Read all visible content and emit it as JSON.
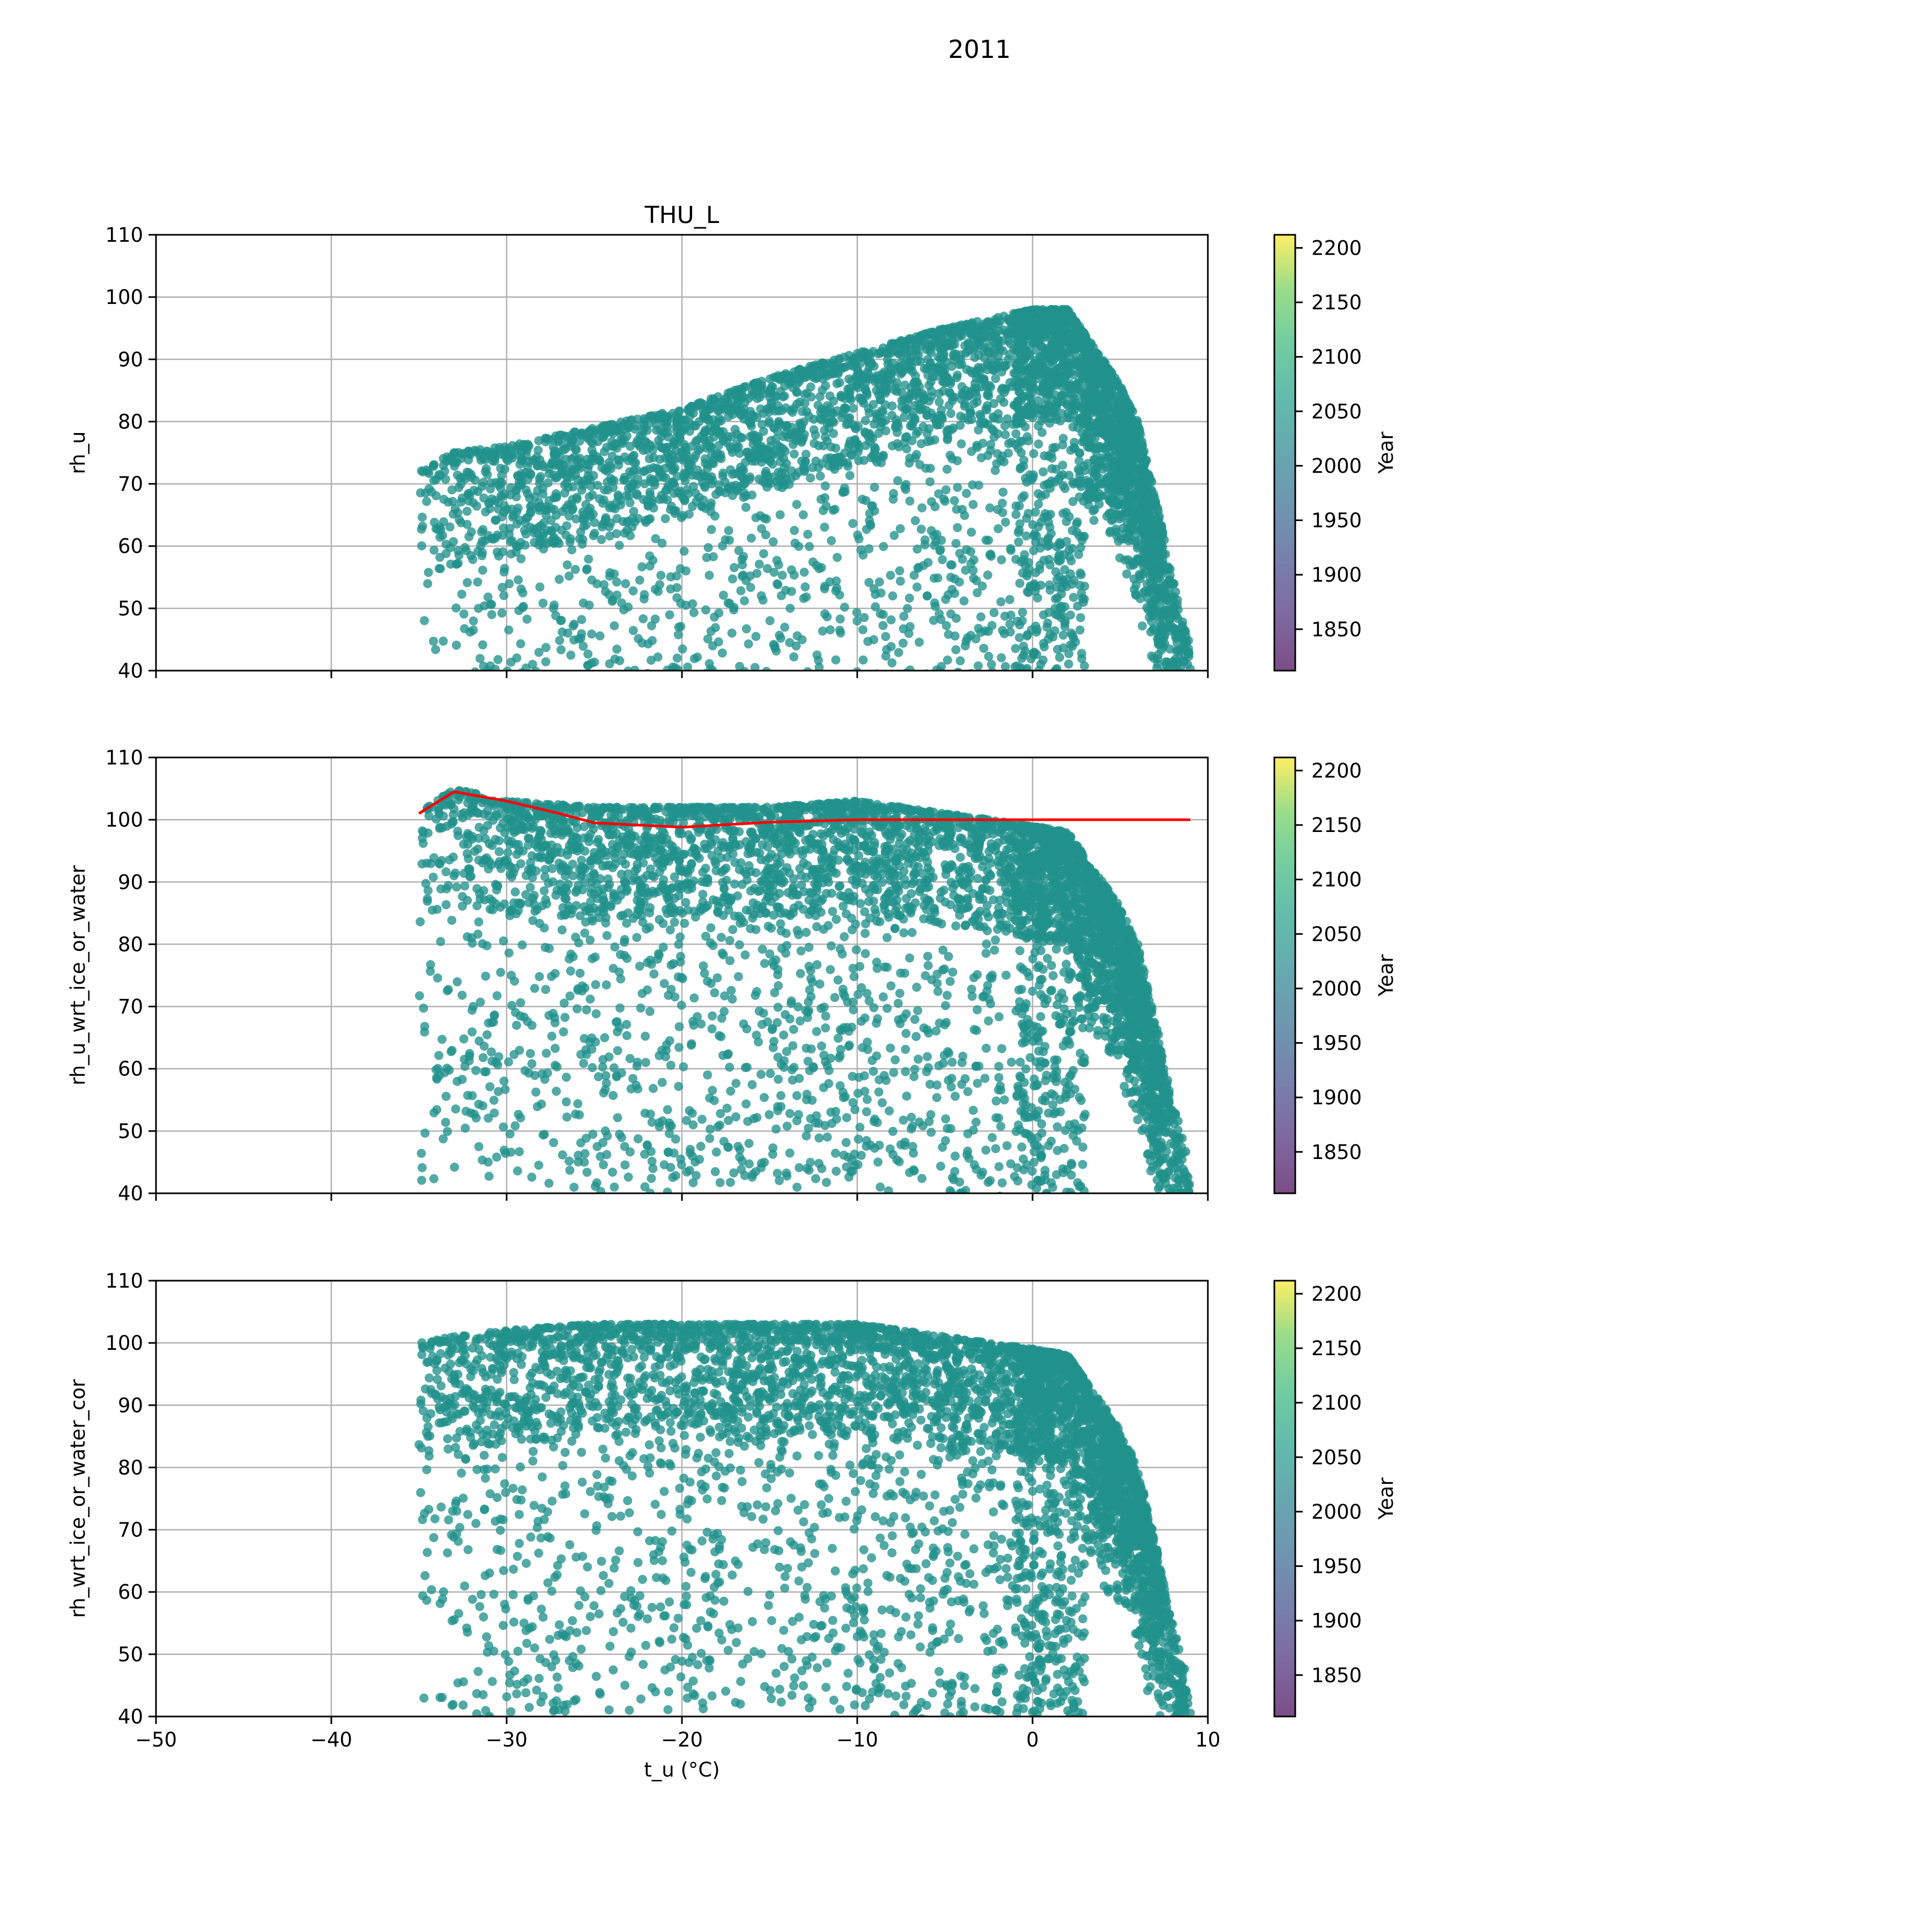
{
  "figure": {
    "suptitle": "2011"
  },
  "colorbar": {
    "label": "Year",
    "ticks": [
      "1850",
      "1900",
      "1950",
      "2000",
      "2050",
      "2100",
      "2150",
      "2200"
    ],
    "range": [
      1812,
      2212
    ],
    "colormap": "viridis"
  },
  "point_color": "#21918c",
  "line_color": "#ff0000",
  "chart_data": [
    {
      "type": "scatter",
      "title": "THU_L",
      "xlabel": "",
      "ylabel": "rh_u",
      "xlim": [
        -50,
        10
      ],
      "ylim": [
        40,
        110
      ],
      "xticks": [
        "−50",
        "−40",
        "−30",
        "−20",
        "−10",
        "0",
        "10"
      ],
      "yticks": [
        "40",
        "50",
        "60",
        "70",
        "80",
        "90",
        "100",
        "110"
      ],
      "show_xticklabels": false,
      "grid": true,
      "color_value_year": 2011,
      "point_cloud": {
        "x_range": [
          -35,
          9
        ],
        "ceiling_points": [
          [
            -35,
            72
          ],
          [
            -33,
            75
          ],
          [
            -30,
            76
          ],
          [
            -25,
            79
          ],
          [
            -20,
            82
          ],
          [
            -15,
            87
          ],
          [
            -10,
            91
          ],
          [
            -5,
            95
          ],
          [
            0,
            98
          ],
          [
            2,
            98
          ],
          [
            3,
            94
          ],
          [
            5,
            86
          ],
          [
            6,
            80
          ],
          [
            7,
            68
          ],
          [
            8,
            55
          ],
          [
            9,
            44
          ]
        ],
        "approx_point_count": 5000
      }
    },
    {
      "type": "scatter",
      "title": "",
      "xlabel": "",
      "ylabel": "rh_u_wrt_ice_or_water",
      "xlim": [
        -50,
        10
      ],
      "ylim": [
        40,
        110
      ],
      "xticks": [
        "−50",
        "−40",
        "−30",
        "−20",
        "−10",
        "0",
        "10"
      ],
      "yticks": [
        "40",
        "50",
        "60",
        "70",
        "80",
        "90",
        "100",
        "110"
      ],
      "show_xticklabels": false,
      "grid": true,
      "color_value_year": 2011,
      "point_cloud": {
        "x_range": [
          -35,
          9
        ],
        "ceiling_points": [
          [
            -35,
            101
          ],
          [
            -33,
            105
          ],
          [
            -30,
            103
          ],
          [
            -25,
            102
          ],
          [
            -20,
            102
          ],
          [
            -15,
            102
          ],
          [
            -10,
            103
          ],
          [
            -5,
            101
          ],
          [
            0,
            99
          ],
          [
            2,
            98
          ],
          [
            3,
            94
          ],
          [
            5,
            86
          ],
          [
            6,
            80
          ],
          [
            7,
            68
          ],
          [
            8,
            55
          ],
          [
            9,
            44
          ]
        ],
        "approx_point_count": 5000
      },
      "line": {
        "name": "",
        "x": [
          -35,
          -33,
          -30,
          -27,
          -25,
          -20,
          -15,
          -10,
          -5,
          0,
          5,
          9
        ],
        "y": [
          101,
          104.5,
          103,
          101,
          99.5,
          98.8,
          99.6,
          100,
          100,
          100,
          100,
          100
        ]
      }
    },
    {
      "type": "scatter",
      "title": "",
      "xlabel": "t_u (°C)",
      "ylabel": "rh_wrt_ice_or_water_cor",
      "xlim": [
        -50,
        10
      ],
      "ylim": [
        40,
        110
      ],
      "xticks": [
        "−50",
        "−40",
        "−30",
        "−20",
        "−10",
        "0",
        "10"
      ],
      "yticks": [
        "40",
        "50",
        "60",
        "70",
        "80",
        "90",
        "100",
        "110"
      ],
      "show_xticklabels": true,
      "grid": true,
      "color_value_year": 2011,
      "point_cloud": {
        "x_range": [
          -35,
          9
        ],
        "ceiling_points": [
          [
            -35,
            100
          ],
          [
            -33,
            101
          ],
          [
            -30,
            102
          ],
          [
            -25,
            103
          ],
          [
            -20,
            103
          ],
          [
            -15,
            103
          ],
          [
            -10,
            103
          ],
          [
            -5,
            101
          ],
          [
            0,
            99
          ],
          [
            2,
            98
          ],
          [
            3,
            94
          ],
          [
            5,
            86
          ],
          [
            6,
            80
          ],
          [
            7,
            68
          ],
          [
            8,
            55
          ],
          [
            9,
            44
          ]
        ],
        "approx_point_count": 5000
      }
    }
  ]
}
